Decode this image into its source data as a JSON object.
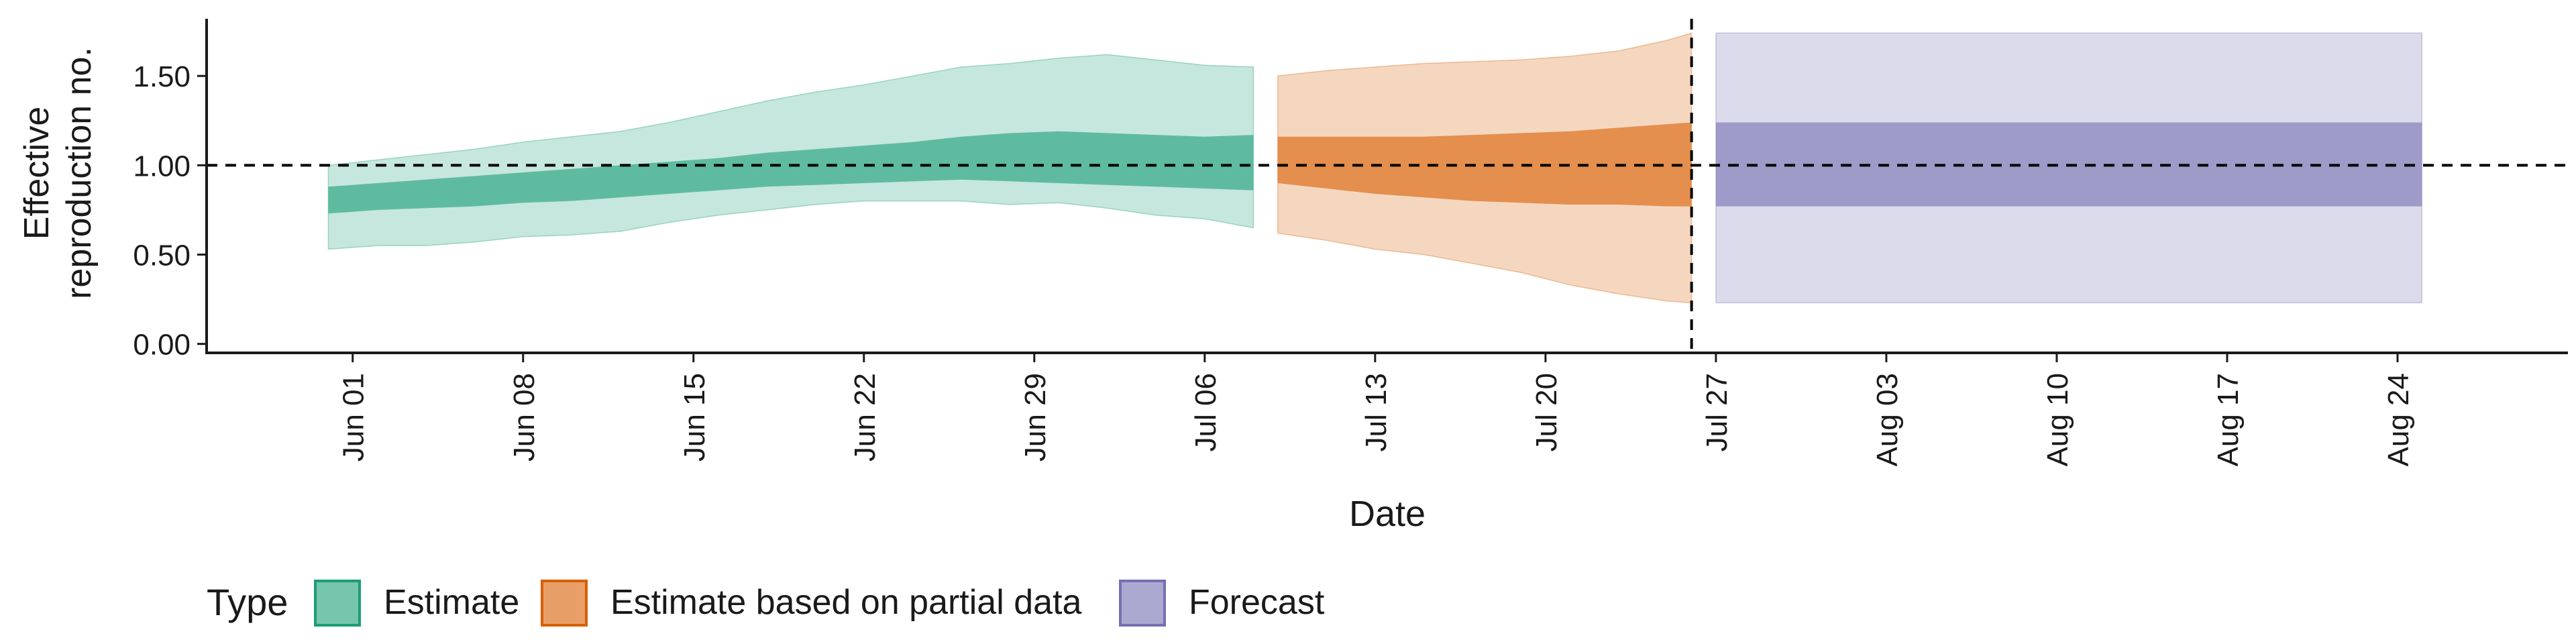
{
  "chart_data": {
    "type": "area",
    "xlabel": "Date",
    "ylabel": "Effective reproduction no.",
    "ylabel_lines": [
      "Effective",
      "reproduction no."
    ],
    "ylim": [
      -0.05,
      1.82
    ],
    "y_ticks": [
      0.0,
      0.5,
      1.0,
      1.5
    ],
    "y_tick_labels": [
      "0.00",
      "0.50",
      "1.00",
      "1.50"
    ],
    "x_range": [
      "2020-05-26",
      "2020-08-31"
    ],
    "x_ticks": [
      "2020-06-01",
      "2020-06-08",
      "2020-06-15",
      "2020-06-22",
      "2020-06-29",
      "2020-07-06",
      "2020-07-13",
      "2020-07-20",
      "2020-07-27",
      "2020-08-03",
      "2020-08-10",
      "2020-08-17",
      "2020-08-24"
    ],
    "x_tick_labels": [
      "Jun 01",
      "Jun 08",
      "Jun 15",
      "Jun 22",
      "Jun 29",
      "Jul 06",
      "Jul 13",
      "Jul 20",
      "Jul 27",
      "Aug 03",
      "Aug 10",
      "Aug 17",
      "Aug 24"
    ],
    "reference_lines": {
      "horizontal_y": 1.0,
      "vertical_date": "2020-07-26"
    },
    "grid": false,
    "legend": {
      "title": "Type",
      "position": "bottom-left",
      "entries": [
        "Estimate",
        "Estimate based on partial data",
        "Forecast"
      ]
    },
    "colors": {
      "Estimate": "#1b9e77",
      "Estimate based on partial data": "#d95f02",
      "Forecast": "#7570b3"
    },
    "series": [
      {
        "name": "Estimate",
        "dates": [
          "2020-05-31",
          "2020-06-02",
          "2020-06-04",
          "2020-06-06",
          "2020-06-08",
          "2020-06-10",
          "2020-06-12",
          "2020-06-14",
          "2020-06-16",
          "2020-06-18",
          "2020-06-20",
          "2020-06-22",
          "2020-06-24",
          "2020-06-26",
          "2020-06-28",
          "2020-06-30",
          "2020-07-02",
          "2020-07-04",
          "2020-07-06",
          "2020-07-08"
        ],
        "lower_90": [
          0.53,
          0.55,
          0.55,
          0.57,
          0.6,
          0.61,
          0.63,
          0.68,
          0.72,
          0.75,
          0.78,
          0.8,
          0.8,
          0.8,
          0.78,
          0.79,
          0.76,
          0.72,
          0.7,
          0.65
        ],
        "lower_50": [
          0.73,
          0.75,
          0.76,
          0.77,
          0.79,
          0.8,
          0.82,
          0.84,
          0.86,
          0.88,
          0.89,
          0.9,
          0.91,
          0.92,
          0.91,
          0.9,
          0.89,
          0.88,
          0.87,
          0.86
        ],
        "upper_50": [
          0.88,
          0.9,
          0.92,
          0.94,
          0.96,
          0.98,
          1.0,
          1.02,
          1.04,
          1.07,
          1.09,
          1.11,
          1.13,
          1.16,
          1.18,
          1.19,
          1.18,
          1.17,
          1.16,
          1.17
        ],
        "upper_90": [
          1.0,
          1.03,
          1.06,
          1.09,
          1.13,
          1.16,
          1.19,
          1.24,
          1.3,
          1.36,
          1.41,
          1.45,
          1.5,
          1.55,
          1.57,
          1.6,
          1.62,
          1.59,
          1.56,
          1.55
        ]
      },
      {
        "name": "Estimate based on partial data",
        "dates": [
          "2020-07-09",
          "2020-07-11",
          "2020-07-13",
          "2020-07-15",
          "2020-07-17",
          "2020-07-19",
          "2020-07-21",
          "2020-07-23",
          "2020-07-25",
          "2020-07-26"
        ],
        "lower_90": [
          0.62,
          0.58,
          0.53,
          0.5,
          0.45,
          0.4,
          0.33,
          0.28,
          0.24,
          0.23
        ],
        "lower_50": [
          0.9,
          0.87,
          0.84,
          0.82,
          0.8,
          0.79,
          0.78,
          0.78,
          0.77,
          0.77
        ],
        "upper_50": [
          1.16,
          1.16,
          1.16,
          1.16,
          1.17,
          1.18,
          1.19,
          1.21,
          1.23,
          1.24
        ],
        "upper_90": [
          1.5,
          1.53,
          1.55,
          1.57,
          1.58,
          1.59,
          1.61,
          1.64,
          1.7,
          1.74
        ]
      },
      {
        "name": "Forecast",
        "dates": [
          "2020-07-27",
          "2020-08-25"
        ],
        "lower_90": [
          0.23,
          0.23
        ],
        "lower_50": [
          0.77,
          0.77
        ],
        "upper_50": [
          1.24,
          1.24
        ],
        "upper_90": [
          1.74,
          1.74
        ]
      }
    ]
  }
}
